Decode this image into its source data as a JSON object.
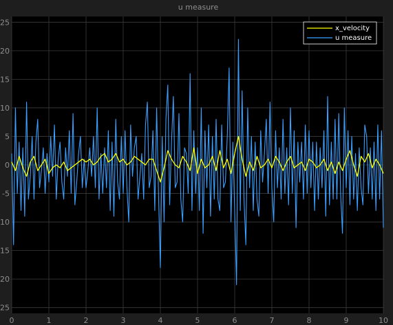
{
  "window": {
    "title": "u measure",
    "colors": {
      "background": "#1e1e1e",
      "axes": "#000000",
      "grid": "#3c3c3c",
      "text": "#8f8f8f"
    }
  },
  "chart_data": {
    "type": "line",
    "title": "u measure",
    "xlabel": "",
    "ylabel": "",
    "xlim": [
      0,
      10
    ],
    "ylim": [
      -26,
      26
    ],
    "x_ticks": [
      0,
      1,
      2,
      3,
      4,
      5,
      6,
      7,
      8,
      9,
      10
    ],
    "y_ticks": [
      -25,
      -20,
      -15,
      -10,
      -5,
      0,
      5,
      10,
      15,
      20,
      25
    ],
    "y_tick_labels": [
      "-25",
      "-20",
      "-15",
      "-10",
      "-5",
      "0",
      "5",
      "10",
      "15",
      "20",
      "25"
    ],
    "grid": true,
    "legend": "top-right",
    "series": [
      {
        "name": "x_velocity",
        "color": "#ffff00",
        "x": [
          0,
          0.1,
          0.2,
          0.3,
          0.4,
          0.5,
          0.6,
          0.7,
          0.8,
          0.9,
          1.0,
          1.1,
          1.2,
          1.3,
          1.4,
          1.5,
          1.6,
          1.7,
          1.8,
          1.9,
          2.0,
          2.1,
          2.2,
          2.3,
          2.4,
          2.5,
          2.6,
          2.7,
          2.8,
          2.9,
          3.0,
          3.1,
          3.2,
          3.3,
          3.4,
          3.5,
          3.6,
          3.7,
          3.8,
          3.9,
          4.0,
          4.1,
          4.2,
          4.3,
          4.4,
          4.5,
          4.6,
          4.7,
          4.8,
          4.9,
          5.0,
          5.1,
          5.2,
          5.3,
          5.4,
          5.5,
          5.6,
          5.7,
          5.8,
          5.9,
          6.0,
          6.1,
          6.2,
          6.3,
          6.4,
          6.5,
          6.6,
          6.7,
          6.8,
          6.9,
          7.0,
          7.1,
          7.2,
          7.3,
          7.4,
          7.5,
          7.6,
          7.7,
          7.8,
          7.9,
          8.0,
          8.1,
          8.2,
          8.3,
          8.4,
          8.5,
          8.6,
          8.7,
          8.8,
          8.9,
          9.0,
          9.1,
          9.2,
          9.3,
          9.4,
          9.5,
          9.6,
          9.7,
          9.8,
          9.9,
          10.0
        ],
        "y": [
          0.5,
          -1.0,
          1.5,
          -0.5,
          -2.0,
          0.5,
          1.5,
          -1.0,
          0.0,
          1.0,
          -1.5,
          -0.5,
          0.0,
          -0.5,
          0.5,
          -1.0,
          -0.5,
          0.0,
          0.5,
          1.0,
          0.5,
          1.0,
          0.0,
          0.5,
          1.5,
          2.0,
          0.5,
          1.0,
          2.0,
          0.5,
          1.0,
          0.0,
          0.5,
          1.5,
          1.0,
          0.5,
          0.0,
          1.0,
          1.0,
          -1.0,
          -3.0,
          -0.5,
          2.5,
          1.0,
          0.0,
          -0.5,
          1.5,
          0.5,
          -1.0,
          3.0,
          -1.5,
          1.0,
          -0.5,
          0.0,
          1.5,
          -1.0,
          2.5,
          -0.5,
          1.0,
          -1.5,
          2.0,
          5.0,
          1.0,
          -2.0,
          0.5,
          -1.0,
          1.5,
          -0.5,
          0.0,
          1.0,
          -0.5,
          1.5,
          0.5,
          -1.0,
          0.5,
          1.5,
          -0.5,
          0.0,
          0.5,
          -1.0,
          1.0,
          0.5,
          -0.5,
          0.0,
          1.0,
          -1.0,
          0.5,
          -1.5,
          0.5,
          -1.0,
          1.0,
          2.5,
          0.0,
          -2.0,
          1.5,
          0.5,
          2.0,
          -0.5,
          1.0,
          0.0,
          -1.5
        ]
      },
      {
        "name": "u measure",
        "color": "#3ba0ff",
        "x": [
          0,
          0.05,
          0.1,
          0.15,
          0.2,
          0.25,
          0.3,
          0.35,
          0.4,
          0.45,
          0.5,
          0.55,
          0.6,
          0.65,
          0.7,
          0.75,
          0.8,
          0.85,
          0.9,
          0.95,
          1.0,
          1.05,
          1.1,
          1.15,
          1.2,
          1.25,
          1.3,
          1.35,
          1.4,
          1.45,
          1.5,
          1.55,
          1.6,
          1.65,
          1.7,
          1.75,
          1.8,
          1.85,
          1.9,
          1.95,
          2.0,
          2.05,
          2.1,
          2.15,
          2.2,
          2.25,
          2.3,
          2.35,
          2.4,
          2.45,
          2.5,
          2.55,
          2.6,
          2.65,
          2.7,
          2.75,
          2.8,
          2.85,
          2.9,
          2.95,
          3.0,
          3.05,
          3.1,
          3.15,
          3.2,
          3.25,
          3.3,
          3.35,
          3.4,
          3.45,
          3.5,
          3.55,
          3.6,
          3.65,
          3.7,
          3.75,
          3.8,
          3.85,
          3.9,
          3.95,
          4.0,
          4.05,
          4.1,
          4.15,
          4.2,
          4.25,
          4.3,
          4.35,
          4.4,
          4.45,
          4.5,
          4.55,
          4.6,
          4.65,
          4.7,
          4.75,
          4.8,
          4.85,
          4.9,
          4.95,
          5.0,
          5.05,
          5.1,
          5.15,
          5.2,
          5.25,
          5.3,
          5.35,
          5.4,
          5.45,
          5.5,
          5.55,
          5.6,
          5.65,
          5.7,
          5.75,
          5.8,
          5.85,
          5.9,
          5.95,
          6.0,
          6.05,
          6.1,
          6.15,
          6.2,
          6.25,
          6.3,
          6.35,
          6.4,
          6.45,
          6.5,
          6.55,
          6.6,
          6.65,
          6.7,
          6.75,
          6.8,
          6.85,
          6.9,
          6.95,
          7.0,
          7.05,
          7.1,
          7.15,
          7.2,
          7.25,
          7.3,
          7.35,
          7.4,
          7.45,
          7.5,
          7.55,
          7.6,
          7.65,
          7.7,
          7.75,
          7.8,
          7.85,
          7.9,
          7.95,
          8.0,
          8.05,
          8.1,
          8.15,
          8.2,
          8.25,
          8.3,
          8.35,
          8.4,
          8.45,
          8.5,
          8.55,
          8.6,
          8.65,
          8.7,
          8.75,
          8.8,
          8.85,
          8.9,
          8.95,
          9.0,
          9.05,
          9.1,
          9.15,
          9.2,
          9.25,
          9.3,
          9.35,
          9.4,
          9.45,
          9.5,
          9.55,
          9.6,
          9.65,
          9.7,
          9.75,
          9.8,
          9.85,
          9.9,
          9.95,
          10.0
        ],
        "y": [
          2,
          -14,
          10,
          -5,
          4,
          -8,
          3,
          -9,
          11,
          -6,
          -2,
          5,
          -6,
          4,
          8,
          -4,
          -1,
          3,
          -5,
          2,
          -3,
          5,
          -2,
          7,
          -6,
          1,
          4,
          -3,
          -6,
          3,
          -2,
          6,
          -5,
          9,
          -7,
          -3,
          2,
          5,
          -4,
          1,
          -4,
          -1,
          3,
          -2,
          5,
          -4,
          10,
          -6,
          2,
          -5,
          3,
          -4,
          6,
          -8,
          4,
          -9,
          8,
          -3,
          -6,
          5,
          -5,
          6,
          -4,
          -10,
          7,
          -2,
          3,
          5,
          -6,
          -2,
          2,
          -6,
          7,
          11,
          -4,
          -2,
          6,
          -8,
          10,
          -5,
          -18,
          5,
          -10,
          8,
          14,
          -7,
          4,
          12,
          -4,
          -3,
          9,
          -6,
          -10,
          3,
          2,
          -5,
          16,
          -8,
          6,
          -5,
          3,
          -8,
          10,
          -12,
          6,
          -4,
          7,
          -9,
          5,
          -6,
          8,
          -6,
          -8,
          7,
          -4,
          -3,
          5,
          17,
          -10,
          4,
          -8,
          -21,
          22,
          -8,
          13,
          -6,
          -14,
          10,
          -4,
          5,
          -8,
          4,
          -6,
          -9,
          6,
          -3,
          2,
          8,
          -5,
          11,
          -4,
          -10,
          6,
          -4,
          3,
          -6,
          8,
          -5,
          3,
          -7,
          10,
          -5,
          6,
          -11,
          4,
          -3,
          4,
          -6,
          7,
          -5,
          6,
          -4,
          4,
          -8,
          4,
          -6,
          3,
          -4,
          6,
          -9,
          12,
          -7,
          4,
          -6,
          8,
          -6,
          9,
          -5,
          -12,
          10,
          -4,
          6,
          -7,
          5,
          -6,
          2,
          -8,
          3,
          -4,
          -7,
          7,
          5,
          -5,
          3,
          -6,
          4,
          -8,
          7,
          -6,
          6,
          -11
        ]
      }
    ]
  }
}
